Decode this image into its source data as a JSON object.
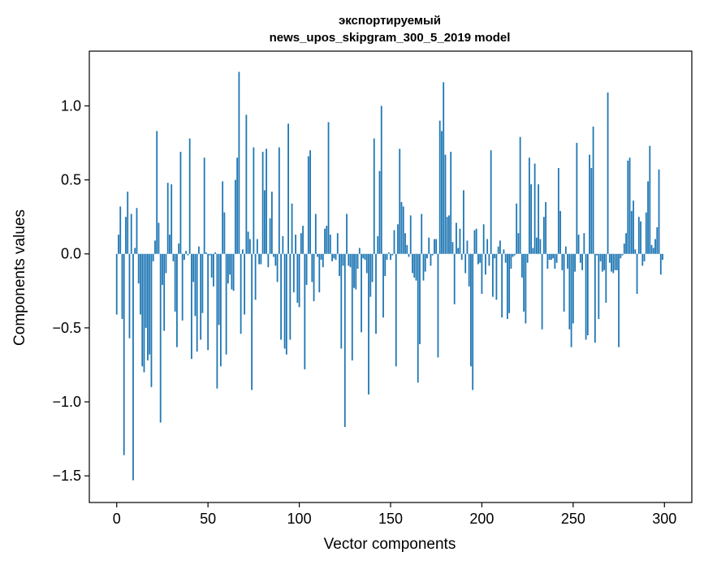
{
  "chart_data": {
    "type": "bar",
    "title_lines": [
      "экспортируемый",
      "news_upos_skipgram_300_5_2019 model"
    ],
    "xlabel": "Vector components",
    "ylabel": "Components values",
    "x_ticks": [
      0,
      50,
      100,
      150,
      200,
      250,
      300
    ],
    "x_tick_labels": [
      "0",
      "50",
      "100",
      "150",
      "200",
      "250",
      "300"
    ],
    "y_ticks": [
      -1.5,
      -1.0,
      -0.5,
      0.0,
      0.5,
      1.0
    ],
    "y_tick_labels": [
      "−1.5",
      "−1.0",
      "−0.5",
      "0.0",
      "0.5",
      "1.0"
    ],
    "xlim": [
      -15,
      315
    ],
    "ylim": [
      -1.68,
      1.37
    ],
    "bar_color": "#1f77b4",
    "grid": false,
    "values": [
      -0.41,
      0.13,
      0.32,
      -0.44,
      -1.36,
      0.25,
      0.42,
      -0.57,
      0.27,
      -1.53,
      0.04,
      0.31,
      -0.2,
      -0.41,
      -0.76,
      -0.8,
      -0.5,
      -0.72,
      -0.68,
      -0.9,
      -0.05,
      0.09,
      0.83,
      0.21,
      -1.14,
      -0.21,
      -0.52,
      -0.13,
      0.48,
      0.13,
      0.47,
      -0.05,
      -0.39,
      -0.63,
      0.07,
      0.69,
      -0.45,
      -0.04,
      0.02,
      -0.01,
      0.78,
      -0.71,
      -0.19,
      -0.42,
      -0.66,
      0.05,
      -0.58,
      -0.4,
      0.65,
      0.01,
      -0.65,
      -0.01,
      -0.16,
      -0.22,
      0.01,
      -0.91,
      -0.48,
      -0.76,
      0.49,
      0.28,
      -0.68,
      -0.2,
      -0.14,
      -0.24,
      -0.25,
      0.5,
      0.65,
      1.23,
      -0.54,
      0.03,
      -0.41,
      0.94,
      0.15,
      0.1,
      -0.92,
      0.72,
      -0.31,
      0.1,
      -0.07,
      -0.07,
      0.69,
      0.43,
      0.71,
      -0.09,
      0.24,
      0.42,
      -0.02,
      -0.08,
      -0.19,
      0.72,
      -0.58,
      0.12,
      -0.64,
      -0.68,
      0.88,
      -0.58,
      0.34,
      -0.26,
      0.13,
      -0.33,
      -0.36,
      0.14,
      0.19,
      -0.78,
      -0.21,
      0.66,
      0.7,
      -0.19,
      -0.32,
      0.27,
      -0.02,
      -0.26,
      -0.04,
      -0.09,
      0.17,
      0.19,
      0.89,
      0.13,
      -0.05,
      -0.03,
      -0.04,
      0.14,
      -0.15,
      -0.64,
      -0.08,
      -1.17,
      0.27,
      -0.08,
      -0.09,
      -0.72,
      -0.23,
      -0.24,
      -0.1,
      0.04,
      -0.53,
      -0.03,
      -0.04,
      -0.13,
      -0.95,
      -0.29,
      -0.19,
      0.78,
      -0.54,
      0.12,
      0.56,
      1.0,
      -0.43,
      -0.15,
      -0.04,
      0.01,
      -0.04,
      -0.01,
      0.16,
      -0.76,
      0.2,
      0.71,
      0.35,
      0.32,
      0.14,
      0.06,
      -0.02,
      0.26,
      -0.13,
      -0.16,
      -0.18,
      -0.87,
      -0.61,
      0.27,
      -0.18,
      -0.12,
      -0.03,
      0.11,
      -0.08,
      -0.01,
      0.1,
      0.1,
      -0.7,
      0.9,
      0.83,
      1.16,
      0.67,
      0.25,
      0.26,
      0.69,
      0.08,
      -0.34,
      0.21,
      0.04,
      0.17,
      -0.04,
      0.43,
      -0.13,
      0.09,
      -0.22,
      -0.76,
      -0.92,
      0.16,
      0.17,
      -0.07,
      -0.06,
      -0.27,
      0.2,
      -0.14,
      0.1,
      -0.08,
      0.7,
      -0.29,
      -0.03,
      -0.31,
      0.05,
      0.09,
      -0.43,
      0.03,
      -0.06,
      -0.44,
      -0.4,
      -0.1,
      -0.02,
      -0.01,
      0.34,
      0.14,
      0.79,
      -0.16,
      -0.39,
      -0.47,
      -0.06,
      0.65,
      0.47,
      0.04,
      0.61,
      0.11,
      0.47,
      0.1,
      -0.51,
      0.25,
      0.35,
      -0.1,
      -0.04,
      -0.04,
      -0.03,
      -0.1,
      -0.06,
      0.58,
      0.29,
      -0.11,
      -0.39,
      0.05,
      -0.1,
      -0.51,
      -0.63,
      -0.47,
      -0.12,
      0.75,
      0.13,
      -0.06,
      -0.11,
      0.14,
      -0.58,
      -0.55,
      0.67,
      0.58,
      0.86,
      -0.6,
      -0.01,
      -0.44,
      -0.05,
      -0.12,
      -0.11,
      -0.33,
      1.09,
      -0.06,
      -0.12,
      -0.13,
      -0.11,
      -0.11,
      -0.63,
      -0.03,
      -0.01,
      0.07,
      0.14,
      0.63,
      0.65,
      0.29,
      0.36,
      0.03,
      -0.27,
      0.25,
      0.22,
      -0.08,
      -0.05,
      0.28,
      0.49,
      0.73,
      0.06,
      0.04,
      0.1,
      0.18,
      0.57,
      -0.14,
      -0.04
    ]
  }
}
